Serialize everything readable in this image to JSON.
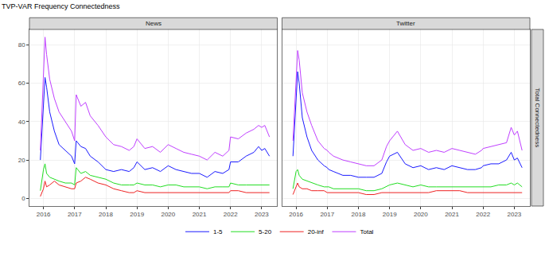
{
  "title": "TVP-VAR Frequency Connectedness",
  "side_label": "Total Connectedness",
  "chart_data": [
    {
      "type": "line",
      "title": "News",
      "x": [
        2015.9,
        2016.0,
        2016.05,
        2016.1,
        2016.2,
        2016.35,
        2016.5,
        2016.7,
        2016.9,
        2017.0,
        2017.05,
        2017.2,
        2017.35,
        2017.5,
        2017.75,
        2018.0,
        2018.25,
        2018.5,
        2018.75,
        2018.9,
        2019.0,
        2019.25,
        2019.5,
        2019.75,
        2020.0,
        2020.25,
        2020.5,
        2020.75,
        2021.0,
        2021.25,
        2021.5,
        2021.75,
        2021.95,
        2022.0,
        2022.25,
        2022.5,
        2022.75,
        2022.9,
        2023.0,
        2023.1,
        2023.25
      ],
      "xlim": [
        2015.55,
        2023.5
      ],
      "xticks": [
        2016,
        2017,
        2018,
        2019,
        2020,
        2021,
        2022,
        2023
      ],
      "ylim": [
        -4,
        88
      ],
      "yticks": [
        0,
        20,
        40,
        60,
        80
      ],
      "grid": true,
      "legend": "bottom",
      "series": [
        {
          "name": "1-5",
          "color": "#1a1aff",
          "values": [
            20,
            50,
            63,
            58,
            45,
            35,
            28,
            25,
            22,
            18,
            30,
            27,
            26,
            22,
            19,
            15,
            14,
            15,
            14,
            16,
            19,
            15,
            16,
            14,
            17,
            15,
            14,
            13,
            13,
            11,
            14,
            13,
            15,
            19,
            19,
            22,
            24,
            27,
            25,
            26,
            22
          ]
        },
        {
          "name": "5-20",
          "color": "#22dd22",
          "values": [
            4,
            15,
            18,
            13,
            11,
            10,
            9,
            8,
            8,
            7,
            16,
            13,
            14,
            12,
            11,
            10,
            8,
            7,
            7,
            7,
            8,
            7,
            7,
            6,
            7,
            7,
            6,
            6,
            6,
            5,
            6,
            6,
            6,
            8,
            7,
            7,
            7,
            7,
            7,
            7,
            7
          ]
        },
        {
          "name": "20-inf",
          "color": "#ee2222",
          "values": [
            1,
            5,
            9,
            6,
            7,
            9,
            7,
            6,
            5,
            5,
            8,
            9,
            11,
            10,
            8,
            7,
            5,
            4,
            3,
            3,
            4,
            3,
            3,
            3,
            3,
            3,
            3,
            3,
            3,
            3,
            3,
            3,
            3,
            4,
            4,
            3,
            3,
            3,
            3,
            3,
            3
          ]
        },
        {
          "name": "Total",
          "color": "#bf3fff",
          "values": [
            25,
            70,
            84,
            75,
            62,
            52,
            45,
            40,
            35,
            30,
            54,
            48,
            50,
            43,
            38,
            32,
            28,
            27,
            25,
            27,
            31,
            26,
            27,
            24,
            28,
            26,
            24,
            23,
            22,
            20,
            24,
            22,
            25,
            32,
            31,
            34,
            36,
            38,
            37,
            38,
            32
          ]
        }
      ]
    },
    {
      "type": "line",
      "title": "Twitter",
      "x": [
        2015.9,
        2016.0,
        2016.05,
        2016.1,
        2016.2,
        2016.35,
        2016.5,
        2016.7,
        2016.9,
        2017.0,
        2017.05,
        2017.2,
        2017.35,
        2017.5,
        2017.75,
        2018.0,
        2018.25,
        2018.5,
        2018.75,
        2018.9,
        2019.0,
        2019.25,
        2019.5,
        2019.75,
        2020.0,
        2020.25,
        2020.5,
        2020.75,
        2021.0,
        2021.25,
        2021.5,
        2021.75,
        2021.95,
        2022.0,
        2022.25,
        2022.5,
        2022.75,
        2022.9,
        2023.0,
        2023.1,
        2023.25
      ],
      "xlim": [
        2015.55,
        2023.5
      ],
      "xticks": [
        2016,
        2017,
        2018,
        2019,
        2020,
        2021,
        2022,
        2023
      ],
      "ylim": [
        -4,
        88
      ],
      "yticks": [
        0,
        20,
        40,
        60,
        80
      ],
      "grid": true,
      "tick_labels": "x",
      "series": [
        {
          "name": "1-5",
          "color": "#1a1aff",
          "values": [
            22,
            55,
            66,
            60,
            42,
            32,
            25,
            20,
            17,
            16,
            15,
            14,
            13,
            12,
            12,
            11,
            11,
            11,
            13,
            19,
            22,
            24,
            18,
            16,
            17,
            15,
            16,
            15,
            17,
            16,
            15,
            15,
            16,
            17,
            18,
            18,
            20,
            24,
            20,
            21,
            16
          ]
        },
        {
          "name": "5-20",
          "color": "#22dd22",
          "values": [
            5,
            14,
            15,
            12,
            10,
            9,
            8,
            7,
            6,
            6,
            6,
            5,
            5,
            5,
            5,
            5,
            4,
            4,
            5,
            6,
            7,
            8,
            7,
            6,
            7,
            6,
            6,
            6,
            6,
            6,
            6,
            6,
            6,
            6,
            6,
            7,
            7,
            8,
            7,
            8,
            6
          ]
        },
        {
          "name": "20-inf",
          "color": "#ee2222",
          "values": [
            2,
            6,
            8,
            6,
            5,
            5,
            4,
            4,
            4,
            3,
            3,
            3,
            3,
            3,
            3,
            3,
            2,
            2,
            3,
            3,
            3,
            3,
            3,
            3,
            3,
            3,
            4,
            4,
            4,
            4,
            3,
            3,
            3,
            3,
            3,
            3,
            3,
            3,
            3,
            3,
            3
          ]
        },
        {
          "name": "Total",
          "color": "#bf3fff",
          "values": [
            30,
            65,
            77,
            72,
            55,
            45,
            38,
            30,
            26,
            25,
            24,
            22,
            21,
            20,
            19,
            18,
            17,
            17,
            20,
            27,
            30,
            35,
            28,
            25,
            26,
            24,
            25,
            24,
            26,
            25,
            24,
            23,
            25,
            26,
            27,
            28,
            29,
            37,
            33,
            35,
            25
          ]
        }
      ]
    }
  ]
}
